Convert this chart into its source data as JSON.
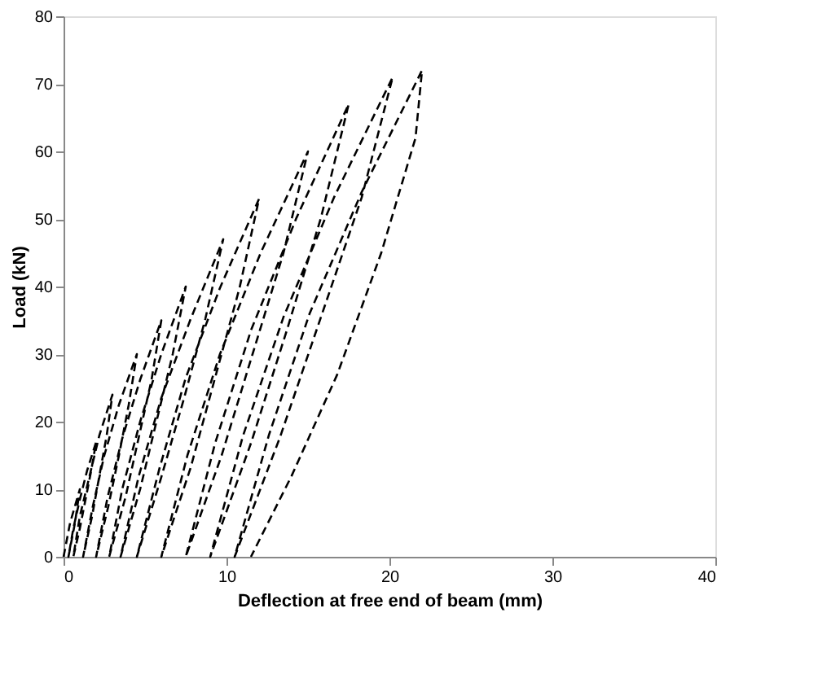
{
  "chart_data": {
    "type": "line",
    "xlabel": "Deflection at free end of beam (mm)",
    "ylabel": "Load (kN)",
    "xlim": [
      0,
      40
    ],
    "ylim": [
      0,
      80
    ],
    "xticks": [
      0,
      10,
      20,
      30,
      40
    ],
    "yticks": [
      0,
      10,
      20,
      30,
      40,
      50,
      60,
      70,
      80
    ],
    "grid": false,
    "line_style": "dashed",
    "marker": "none",
    "series": [
      {
        "color": "#000000",
        "x": [
          0,
          0.2,
          0.4,
          0.7,
          1,
          0.85,
          0.7,
          0.5,
          0.3,
          0.6,
          1.0,
          1.45,
          2,
          1.7,
          1.35,
          1.0,
          0.6,
          1.0,
          1.6,
          2.2,
          3,
          2.65,
          2.2,
          1.75,
          1.2,
          1.8,
          2.5,
          3.4,
          4.5,
          4.0,
          3.4,
          2.75,
          2.0,
          2.7,
          3.6,
          4.7,
          6,
          5.4,
          4.6,
          3.8,
          2.8,
          3.6,
          4.7,
          6.0,
          7.5,
          6.7,
          5.7,
          4.7,
          3.5,
          4.6,
          6.0,
          7.8,
          9.8,
          8.7,
          7.4,
          6.0,
          4.5,
          5.9,
          7.5,
          9.6,
          12,
          10.8,
          9.3,
          7.8,
          6.0,
          7.6,
          9.6,
          12.1,
          15,
          13.5,
          11.6,
          9.7,
          7.5,
          9.3,
          11.5,
          14.3,
          17.5,
          15.8,
          13.7,
          11.5,
          9.0,
          11.0,
          13.5,
          16.6,
          20.2,
          18.3,
          15.8,
          13.3,
          10.5,
          12.6,
          15.1,
          18.3,
          22,
          21.6,
          19.5,
          16.8,
          14.0,
          11.5
        ],
        "values": [
          0,
          2.5,
          5,
          7.5,
          10,
          7.5,
          5,
          2.5,
          0,
          4.2,
          8.5,
          12.8,
          17,
          12.8,
          8.5,
          4.2,
          0,
          6,
          12,
          18,
          24,
          18,
          12,
          6,
          0,
          7.5,
          15,
          22.5,
          30,
          22.5,
          15,
          7.5,
          0,
          8.8,
          17.5,
          26.2,
          35,
          26.2,
          17.5,
          8.8,
          0,
          10,
          20,
          30,
          40,
          30,
          20,
          10,
          0,
          11.8,
          23.5,
          35.2,
          47,
          35.2,
          23.5,
          11.8,
          0,
          13.2,
          26.5,
          39.8,
          53,
          39.8,
          26.5,
          13.2,
          0,
          15,
          30,
          45,
          60,
          45,
          30,
          15,
          0,
          16.8,
          33.5,
          50.2,
          67,
          50.2,
          33.5,
          16.8,
          0,
          17.8,
          35.5,
          53.2,
          71,
          53.2,
          35.5,
          17.8,
          0,
          18,
          36,
          54,
          72,
          62,
          45,
          27,
          12,
          0
        ]
      }
    ]
  }
}
